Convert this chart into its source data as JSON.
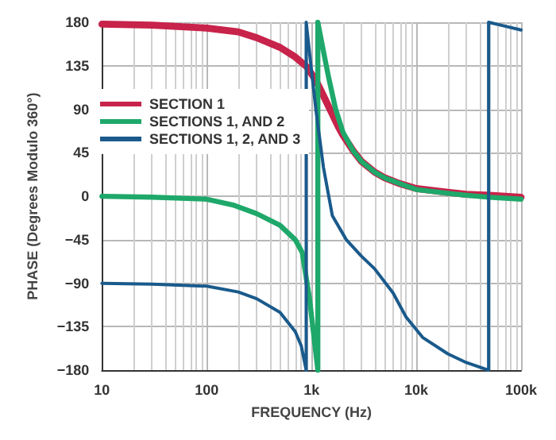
{
  "chart_data": {
    "type": "line",
    "xlabel": "FREQUENCY (Hz)",
    "ylabel": "PHASE (Degrees Modulo 360°)",
    "log": "x",
    "grid": true,
    "legend": "top left",
    "line_style": "solid",
    "marker": "none",
    "xlim": [
      10,
      100000
    ],
    "xticks": [
      10,
      100,
      {
        "value": 1000,
        "label": "1k"
      },
      {
        "value": 10000,
        "label": "10k"
      },
      {
        "value": 100000,
        "label": "100k"
      }
    ],
    "ylim": [
      -180,
      180
    ],
    "yticks": [
      -180,
      -135,
      -90,
      -45,
      0,
      45,
      90,
      135,
      180
    ],
    "series": [
      {
        "name": "SECTION 1",
        "color": "#c8234a",
        "x": [
          10,
          30,
          100,
          200,
          300,
          500,
          700,
          900,
          1100,
          1300,
          1500,
          1800,
          2000,
          2500,
          3000,
          4000,
          5000,
          7000,
          10000,
          20000,
          30000,
          50000,
          100000
        ],
        "values": [
          178,
          177,
          174,
          170,
          164,
          154,
          144,
          134,
          120,
          104,
          90,
          72,
          63,
          47,
          36,
          25,
          19,
          13,
          8,
          4,
          2,
          1,
          -1
        ]
      },
      {
        "name": "SECTIONS 1, AND 2",
        "color": "#1ea86a",
        "x": [
          10,
          30,
          100,
          178,
          300,
          500,
          700,
          815,
          955,
          1150,
          1150,
          1300,
          1450,
          1700,
          2000,
          2500,
          3000,
          4000,
          5000,
          7000,
          10000,
          20000,
          30000,
          50000,
          100000
        ],
        "values": [
          0,
          -1,
          -3,
          -9,
          -18,
          -30,
          -45,
          -58,
          -105,
          -180,
          180,
          150,
          124,
          90,
          66,
          47,
          36,
          25,
          19,
          13,
          7,
          3,
          1,
          -1,
          -3
        ]
      },
      {
        "name": "SECTIONS 1, 2, AND 3",
        "color": "#1a5a8c",
        "x": [
          10,
          30,
          100,
          200,
          300,
          500,
          700,
          800,
          890,
          890,
          1000,
          1100,
          1300,
          1580,
          2150,
          3000,
          4000,
          6000,
          8000,
          11500,
          20000,
          30000,
          49000,
          49000,
          70000,
          100000
        ],
        "values": [
          -90,
          -91,
          -93,
          -99,
          -106,
          -120,
          -140,
          -155,
          -180,
          180,
          130,
          90,
          30,
          -20,
          -45,
          -62,
          -75,
          -100,
          -125,
          -146,
          -163,
          -172,
          -180,
          180,
          176,
          172
        ]
      }
    ]
  }
}
